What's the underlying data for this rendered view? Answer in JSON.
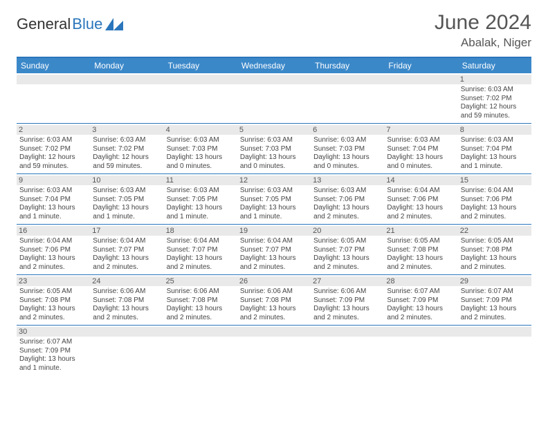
{
  "logo": {
    "text1": "General",
    "text2": "Blue"
  },
  "title": "June 2024",
  "location": "Abalak, Niger",
  "dow": [
    "Sunday",
    "Monday",
    "Tuesday",
    "Wednesday",
    "Thursday",
    "Friday",
    "Saturday"
  ],
  "colors": {
    "header_bg": "#3b88c9",
    "header_border": "#2a75bb",
    "row_border": "#2a75bb",
    "daynum_bg": "#e9e9e9",
    "text": "#444444",
    "title_text": "#555555"
  },
  "weeks": [
    [
      {
        "n": "",
        "sr": "",
        "ss": "",
        "dl": ""
      },
      {
        "n": "",
        "sr": "",
        "ss": "",
        "dl": ""
      },
      {
        "n": "",
        "sr": "",
        "ss": "",
        "dl": ""
      },
      {
        "n": "",
        "sr": "",
        "ss": "",
        "dl": ""
      },
      {
        "n": "",
        "sr": "",
        "ss": "",
        "dl": ""
      },
      {
        "n": "",
        "sr": "",
        "ss": "",
        "dl": ""
      },
      {
        "n": "1",
        "sr": "Sunrise: 6:03 AM",
        "ss": "Sunset: 7:02 PM",
        "dl": "Daylight: 12 hours and 59 minutes."
      }
    ],
    [
      {
        "n": "2",
        "sr": "Sunrise: 6:03 AM",
        "ss": "Sunset: 7:02 PM",
        "dl": "Daylight: 12 hours and 59 minutes."
      },
      {
        "n": "3",
        "sr": "Sunrise: 6:03 AM",
        "ss": "Sunset: 7:02 PM",
        "dl": "Daylight: 12 hours and 59 minutes."
      },
      {
        "n": "4",
        "sr": "Sunrise: 6:03 AM",
        "ss": "Sunset: 7:03 PM",
        "dl": "Daylight: 13 hours and 0 minutes."
      },
      {
        "n": "5",
        "sr": "Sunrise: 6:03 AM",
        "ss": "Sunset: 7:03 PM",
        "dl": "Daylight: 13 hours and 0 minutes."
      },
      {
        "n": "6",
        "sr": "Sunrise: 6:03 AM",
        "ss": "Sunset: 7:03 PM",
        "dl": "Daylight: 13 hours and 0 minutes."
      },
      {
        "n": "7",
        "sr": "Sunrise: 6:03 AM",
        "ss": "Sunset: 7:04 PM",
        "dl": "Daylight: 13 hours and 0 minutes."
      },
      {
        "n": "8",
        "sr": "Sunrise: 6:03 AM",
        "ss": "Sunset: 7:04 PM",
        "dl": "Daylight: 13 hours and 1 minute."
      }
    ],
    [
      {
        "n": "9",
        "sr": "Sunrise: 6:03 AM",
        "ss": "Sunset: 7:04 PM",
        "dl": "Daylight: 13 hours and 1 minute."
      },
      {
        "n": "10",
        "sr": "Sunrise: 6:03 AM",
        "ss": "Sunset: 7:05 PM",
        "dl": "Daylight: 13 hours and 1 minute."
      },
      {
        "n": "11",
        "sr": "Sunrise: 6:03 AM",
        "ss": "Sunset: 7:05 PM",
        "dl": "Daylight: 13 hours and 1 minute."
      },
      {
        "n": "12",
        "sr": "Sunrise: 6:03 AM",
        "ss": "Sunset: 7:05 PM",
        "dl": "Daylight: 13 hours and 1 minute."
      },
      {
        "n": "13",
        "sr": "Sunrise: 6:03 AM",
        "ss": "Sunset: 7:06 PM",
        "dl": "Daylight: 13 hours and 2 minutes."
      },
      {
        "n": "14",
        "sr": "Sunrise: 6:04 AM",
        "ss": "Sunset: 7:06 PM",
        "dl": "Daylight: 13 hours and 2 minutes."
      },
      {
        "n": "15",
        "sr": "Sunrise: 6:04 AM",
        "ss": "Sunset: 7:06 PM",
        "dl": "Daylight: 13 hours and 2 minutes."
      }
    ],
    [
      {
        "n": "16",
        "sr": "Sunrise: 6:04 AM",
        "ss": "Sunset: 7:06 PM",
        "dl": "Daylight: 13 hours and 2 minutes."
      },
      {
        "n": "17",
        "sr": "Sunrise: 6:04 AM",
        "ss": "Sunset: 7:07 PM",
        "dl": "Daylight: 13 hours and 2 minutes."
      },
      {
        "n": "18",
        "sr": "Sunrise: 6:04 AM",
        "ss": "Sunset: 7:07 PM",
        "dl": "Daylight: 13 hours and 2 minutes."
      },
      {
        "n": "19",
        "sr": "Sunrise: 6:04 AM",
        "ss": "Sunset: 7:07 PM",
        "dl": "Daylight: 13 hours and 2 minutes."
      },
      {
        "n": "20",
        "sr": "Sunrise: 6:05 AM",
        "ss": "Sunset: 7:07 PM",
        "dl": "Daylight: 13 hours and 2 minutes."
      },
      {
        "n": "21",
        "sr": "Sunrise: 6:05 AM",
        "ss": "Sunset: 7:08 PM",
        "dl": "Daylight: 13 hours and 2 minutes."
      },
      {
        "n": "22",
        "sr": "Sunrise: 6:05 AM",
        "ss": "Sunset: 7:08 PM",
        "dl": "Daylight: 13 hours and 2 minutes."
      }
    ],
    [
      {
        "n": "23",
        "sr": "Sunrise: 6:05 AM",
        "ss": "Sunset: 7:08 PM",
        "dl": "Daylight: 13 hours and 2 minutes."
      },
      {
        "n": "24",
        "sr": "Sunrise: 6:06 AM",
        "ss": "Sunset: 7:08 PM",
        "dl": "Daylight: 13 hours and 2 minutes."
      },
      {
        "n": "25",
        "sr": "Sunrise: 6:06 AM",
        "ss": "Sunset: 7:08 PM",
        "dl": "Daylight: 13 hours and 2 minutes."
      },
      {
        "n": "26",
        "sr": "Sunrise: 6:06 AM",
        "ss": "Sunset: 7:08 PM",
        "dl": "Daylight: 13 hours and 2 minutes."
      },
      {
        "n": "27",
        "sr": "Sunrise: 6:06 AM",
        "ss": "Sunset: 7:09 PM",
        "dl": "Daylight: 13 hours and 2 minutes."
      },
      {
        "n": "28",
        "sr": "Sunrise: 6:07 AM",
        "ss": "Sunset: 7:09 PM",
        "dl": "Daylight: 13 hours and 2 minutes."
      },
      {
        "n": "29",
        "sr": "Sunrise: 6:07 AM",
        "ss": "Sunset: 7:09 PM",
        "dl": "Daylight: 13 hours and 2 minutes."
      }
    ],
    [
      {
        "n": "30",
        "sr": "Sunrise: 6:07 AM",
        "ss": "Sunset: 7:09 PM",
        "dl": "Daylight: 13 hours and 1 minute."
      },
      {
        "n": "",
        "sr": "",
        "ss": "",
        "dl": ""
      },
      {
        "n": "",
        "sr": "",
        "ss": "",
        "dl": ""
      },
      {
        "n": "",
        "sr": "",
        "ss": "",
        "dl": ""
      },
      {
        "n": "",
        "sr": "",
        "ss": "",
        "dl": ""
      },
      {
        "n": "",
        "sr": "",
        "ss": "",
        "dl": ""
      },
      {
        "n": "",
        "sr": "",
        "ss": "",
        "dl": ""
      }
    ]
  ]
}
